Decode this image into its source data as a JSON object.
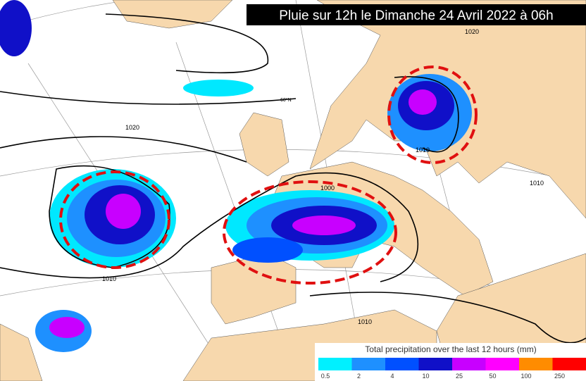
{
  "header": {
    "title": "Pluie sur 12h le Dimanche 24 Avril 2022 à 06h"
  },
  "map": {
    "isobar_labels": [
      "1020",
      "1020",
      "1010",
      "1010",
      "1000",
      "1010",
      "1010"
    ],
    "lat_label": "60°N"
  },
  "legend": {
    "title": "Total precipitation over the last 12 hours (mm)",
    "ticks": [
      "0.5",
      "2",
      "4",
      "10",
      "25",
      "50",
      "100",
      "250"
    ],
    "colors": [
      "#00f0ff",
      "#1e90ff",
      "#0050ff",
      "#1010c8",
      "#c800ff",
      "#ff00ff",
      "#ff8c00",
      "#ff0000"
    ]
  }
}
